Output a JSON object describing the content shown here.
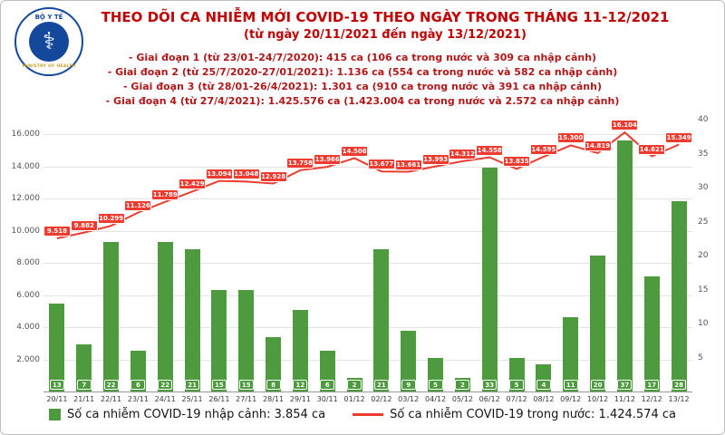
{
  "header": {
    "title": "THEO DÕI CA NHIỄM MỚI COVID-19 THEO NGÀY TRONG THÁNG 11-12/2021",
    "subtitle": "(từ ngày 20/11/2021 đến ngày 13/12/2021)",
    "notes": [
      "- Giai đoạn 1 (từ 23/01-24/7/2020): 415 ca (106 ca trong nước và 309 ca nhập cảnh)",
      "- Giai đoạn 2 (từ 25/7/2020-27/01/2021): 1.136 ca (554 ca trong nước và 582 ca nhập cảnh)",
      "- Giai đoạn 3 (từ 28/01-26/4/2021): 1.301 ca (910 ca trong nước và 391 ca nhập cảnh)",
      "- Giai đoạn 4 (từ 27/4/2021): 1.425.576 ca (1.423.004 ca trong nước và 2.572 ca nhập cảnh)"
    ]
  },
  "logo": {
    "name": "BỘ Y TẾ",
    "subtext": "MINISTRY OF HEALTH"
  },
  "chart_data": {
    "type": "combo",
    "title": "THEO DÕI CA NHIỄM MỚI COVID-19 THEO NGÀY TRONG THÁNG 11-12/2021",
    "categories": [
      "20/11",
      "21/11",
      "22/11",
      "23/11",
      "24/11",
      "25/11",
      "26/11",
      "27/11",
      "28/11",
      "29/11",
      "30/11",
      "01/12",
      "02/12",
      "03/12",
      "04/12",
      "05/12",
      "06/12",
      "07/12",
      "08/12",
      "09/12",
      "10/12",
      "11/12",
      "12/12",
      "13/12"
    ],
    "series": [
      {
        "name": "Số ca nhiễm COVID-19 nhập cảnh",
        "type": "bar",
        "axis": "right",
        "color": "#4d9b3e",
        "values": [
          13,
          7,
          22,
          6,
          22,
          21,
          15,
          15,
          8,
          12,
          6,
          2,
          21,
          9,
          5,
          2,
          33,
          5,
          4,
          11,
          20,
          37,
          17,
          28
        ]
      },
      {
        "name": "Số ca nhiễm COVID-19 trong nước",
        "type": "line",
        "axis": "left",
        "color": "#ed3b2f",
        "values": [
          9518,
          9882,
          10299,
          11126,
          11789,
          12429,
          13094,
          13048,
          12928,
          13758,
          13966,
          14506,
          13677,
          13661,
          13993,
          14312,
          14558,
          13835,
          14595,
          15300,
          14819,
          16104,
          14621,
          15349
        ]
      }
    ],
    "left_axis": {
      "ticks": [
        2000,
        4000,
        6000,
        8000,
        10000,
        12000,
        14000,
        16000
      ],
      "max": 16900,
      "grid": true
    },
    "right_axis": {
      "ticks": [
        5,
        10,
        15,
        20,
        25,
        30,
        35,
        40
      ],
      "max": 40
    },
    "legend_position": "bottom"
  },
  "legend": {
    "bar_label": "Số ca nhiễm COVID-19 nhập cảnh: 3.854 ca",
    "line_label": "Số ca nhiễm COVID-19 trong nước: 1.424.574 ca"
  }
}
